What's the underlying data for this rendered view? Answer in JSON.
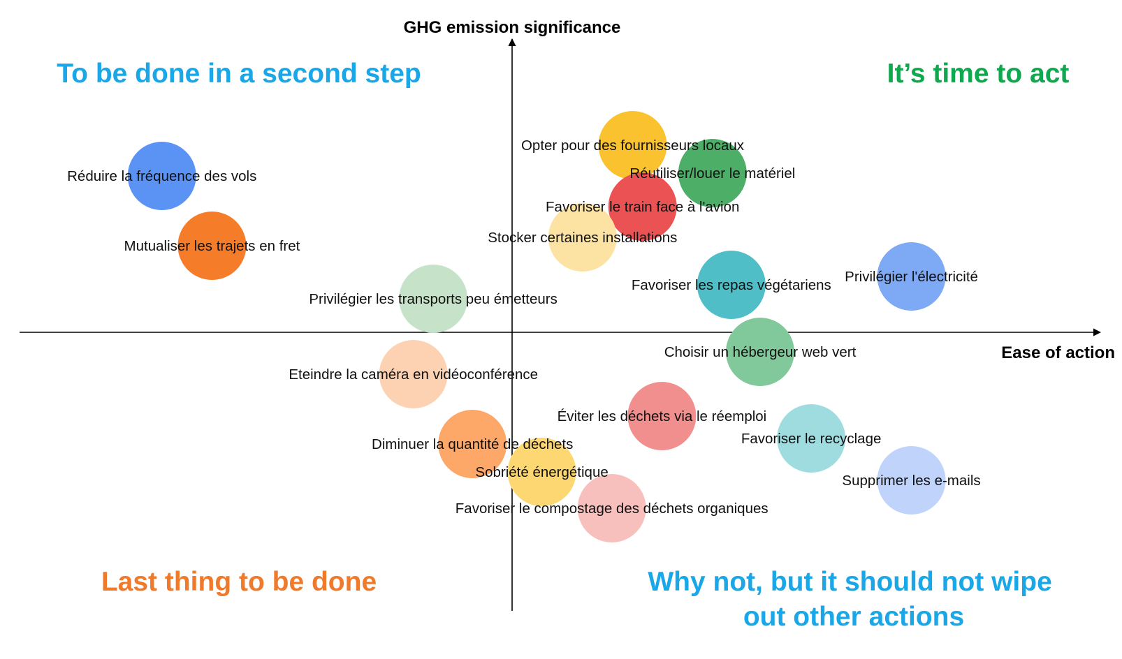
{
  "axes": {
    "y_title": "GHG emission significance",
    "x_title": "Ease of action"
  },
  "quadrants": [
    {
      "key": "top_left",
      "label_lines": [
        "To be done in a second step"
      ],
      "color": "#1aa7e8"
    },
    {
      "key": "top_right",
      "label_lines": [
        "It’s time to act"
      ],
      "color": "#10a84e"
    },
    {
      "key": "bottom_left",
      "label_lines": [
        "Last thing to be done"
      ],
      "color": "#f07a2c"
    },
    {
      "key": "bottom_right",
      "label_lines": [
        "Why not, but it should not wipe",
        "out other actions"
      ],
      "color": "#1aa7e8"
    }
  ],
  "actions": [
    {
      "label": "Réduire la fréquence des vols",
      "ease": -0.706,
      "significance": 0.56,
      "color": "#5b93f5"
    },
    {
      "label": "Mutualiser les trajets en fret",
      "ease": -0.605,
      "significance": 0.31,
      "color": "#f57d2a"
    },
    {
      "label": "Opter pour des fournisseurs locaux",
      "ease": 0.243,
      "significance": 0.67,
      "color": "#f9c22e"
    },
    {
      "label": "Réutiliser/louer le matériel",
      "ease": 0.404,
      "significance": 0.57,
      "color": "#4cae67"
    },
    {
      "label": "Favoriser le train face à l'avion",
      "ease": 0.263,
      "significance": 0.45,
      "color": "#eb5254"
    },
    {
      "label": "Stocker certaines installations",
      "ease": 0.142,
      "significance": 0.34,
      "color": "#fde3a3"
    },
    {
      "label": "Favoriser les repas végétariens",
      "ease": 0.442,
      "significance": 0.17,
      "color": "#4fbec7"
    },
    {
      "label": "Privilégier l'électricité",
      "ease": 0.805,
      "significance": 0.2,
      "color": "#7ea9f5"
    },
    {
      "label": "Privilégier les transports peu émetteurs",
      "ease": -0.159,
      "significance": 0.12,
      "color": "#c6e3c9"
    },
    {
      "label": "Choisir un hébergeur web vert",
      "ease": 0.5,
      "significance": -0.07,
      "color": "#81c89a"
    },
    {
      "label": "Eteindre la caméra en vidéoconférence",
      "ease": -0.199,
      "significance": -0.15,
      "color": "#fdd2b2"
    },
    {
      "label": "Éviter les déchets via le réemploi",
      "ease": 0.302,
      "significance": -0.3,
      "color": "#f08f8d"
    },
    {
      "label": "Favoriser le recyclage",
      "ease": 0.603,
      "significance": -0.38,
      "color": "#9fdce0"
    },
    {
      "label": "Diminuer la quantité de déchets",
      "ease": -0.08,
      "significance": -0.4,
      "color": "#fda768"
    },
    {
      "label": "Sobriété énergétique",
      "ease": 0.06,
      "significance": -0.5,
      "color": "#fdd772"
    },
    {
      "label": "Supprimer les e-mails",
      "ease": 0.805,
      "significance": -0.53,
      "color": "#c0d4fb"
    },
    {
      "label": "Favoriser le compostage des déchets organiques",
      "ease": 0.201,
      "significance": -0.63,
      "color": "#f7c0bc"
    }
  ]
}
